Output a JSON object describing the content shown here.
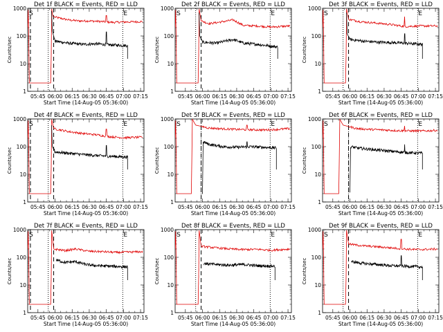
{
  "chart_data": {
    "type": "line",
    "x_tick_labels": [
      "05:45",
      "06:00",
      "06:15",
      "06:30",
      "06:45",
      "07:00",
      "07:15"
    ],
    "x_ticks_hours": [
      5.75,
      6.0,
      6.25,
      6.5,
      6.75,
      7.0,
      7.25
    ],
    "xlim_hours": [
      5.6,
      7.3
    ],
    "ylim": [
      1,
      1000
    ],
    "y_scale": "log",
    "y_tick_labels": [
      "1",
      "10",
      "100",
      "1000"
    ],
    "y_ticks": [
      1,
      10,
      100,
      1000
    ],
    "ylabel": "Counts/sec",
    "xlabel": "Start Time (14-Aug-05 05:36:00)",
    "grid": false,
    "colors": {
      "events": "#000000",
      "lld": "#e00000"
    },
    "markers": [
      {
        "label": "S",
        "hour": 5.612
      },
      {
        "label": "E",
        "hour": 6.99
      }
    ],
    "panels": [
      {
        "title": "Det 1f BLACK = Events, RED = LLD",
        "dashed_hours": [
          5.64,
          5.98
        ],
        "dotted_hours": [
          5.9,
          6.99
        ],
        "lld_profile": [
          [
            5.6,
            200
          ],
          [
            5.605,
            800
          ],
          [
            5.612,
            1000
          ],
          [
            5.62,
            2
          ],
          [
            5.94,
            2
          ],
          [
            5.95,
            1000
          ],
          [
            5.97,
            500
          ],
          [
            6.05,
            450
          ],
          [
            6.2,
            380
          ],
          [
            6.35,
            350
          ],
          [
            6.5,
            350
          ],
          [
            6.7,
            330
          ],
          [
            6.85,
            310
          ],
          [
            7.0,
            320
          ],
          [
            7.28,
            330
          ]
        ],
        "event_profile": [
          [
            5.95,
            800
          ],
          [
            5.96,
            150
          ],
          [
            6.0,
            65
          ],
          [
            6.2,
            55
          ],
          [
            6.4,
            50
          ],
          [
            6.6,
            52
          ],
          [
            6.8,
            48
          ],
          [
            7.06,
            45
          ]
        ],
        "end_drop_hour": 7.06,
        "spike": {
          "hour": 6.75,
          "lld": 550,
          "events": 140
        }
      },
      {
        "title": "Det 2f BLACK = Events, RED = LLD",
        "dashed_hours": [
          5.98
        ],
        "dotted_hours": [
          5.9,
          6.99
        ],
        "lld_profile": [
          [
            5.6,
            200
          ],
          [
            5.605,
            800
          ],
          [
            5.612,
            1000
          ],
          [
            5.62,
            2
          ],
          [
            5.94,
            2
          ],
          [
            5.95,
            1000
          ],
          [
            5.98,
            350
          ],
          [
            6.1,
            280
          ],
          [
            6.3,
            330
          ],
          [
            6.45,
            380
          ],
          [
            6.6,
            240
          ],
          [
            6.8,
            230
          ],
          [
            7.0,
            210
          ],
          [
            7.28,
            230
          ]
        ],
        "event_profile": [
          [
            5.95,
            700
          ],
          [
            5.96,
            100
          ],
          [
            6.0,
            60
          ],
          [
            6.2,
            55
          ],
          [
            6.45,
            75
          ],
          [
            6.6,
            55
          ],
          [
            6.8,
            50
          ],
          [
            7.1,
            40
          ]
        ],
        "end_drop_hour": 7.1,
        "spike": null
      },
      {
        "title": "Det 3f BLACK = Events, RED = LLD",
        "dashed_hours": [
          5.98
        ],
        "dotted_hours": [
          5.9,
          6.99
        ],
        "lld_profile": [
          [
            5.6,
            200
          ],
          [
            5.605,
            800
          ],
          [
            5.612,
            1000
          ],
          [
            5.62,
            2
          ],
          [
            5.94,
            2
          ],
          [
            5.95,
            1000
          ],
          [
            5.98,
            400
          ],
          [
            6.15,
            330
          ],
          [
            6.4,
            290
          ],
          [
            6.6,
            260
          ],
          [
            6.8,
            220
          ],
          [
            7.0,
            230
          ],
          [
            7.28,
            230
          ]
        ],
        "event_profile": [
          [
            5.95,
            700
          ],
          [
            5.96,
            120
          ],
          [
            6.0,
            75
          ],
          [
            6.2,
            65
          ],
          [
            6.4,
            60
          ],
          [
            6.6,
            58
          ],
          [
            6.8,
            55
          ],
          [
            7.06,
            50
          ]
        ],
        "end_drop_hour": 7.06,
        "spike": {
          "hour": 6.8,
          "lld": 500,
          "events": 120
        }
      },
      {
        "title": "Det 4f BLACK = Events, RED = LLD",
        "dashed_hours": [
          5.64,
          5.98
        ],
        "dotted_hours": [
          5.9,
          6.99
        ],
        "lld_profile": [
          [
            5.6,
            200
          ],
          [
            5.605,
            800
          ],
          [
            5.612,
            1000
          ],
          [
            5.62,
            2
          ],
          [
            5.94,
            2
          ],
          [
            5.95,
            1000
          ],
          [
            5.98,
            450
          ],
          [
            6.2,
            350
          ],
          [
            6.4,
            300
          ],
          [
            6.6,
            270
          ],
          [
            6.8,
            230
          ],
          [
            7.0,
            210
          ],
          [
            7.28,
            220
          ]
        ],
        "event_profile": [
          [
            5.95,
            600
          ],
          [
            5.96,
            100
          ],
          [
            6.0,
            65
          ],
          [
            6.2,
            58
          ],
          [
            6.4,
            52
          ],
          [
            6.6,
            48
          ],
          [
            6.8,
            45
          ],
          [
            7.06,
            42
          ]
        ],
        "end_drop_hour": 7.06,
        "spike": {
          "hour": 6.75,
          "lld": 430,
          "events": 110
        }
      },
      {
        "title": "Det 5f BLACK = Events, RED = LLD",
        "dashed_hours": [
          5.98
        ],
        "dotted_hours": [
          5.98,
          6.99
        ],
        "lld_profile": [
          [
            5.6,
            200
          ],
          [
            5.605,
            800
          ],
          [
            5.612,
            1000
          ],
          [
            5.62,
            2
          ],
          [
            5.84,
            2
          ],
          [
            5.85,
            1000
          ],
          [
            5.9,
            600
          ],
          [
            6.1,
            470
          ],
          [
            6.3,
            440
          ],
          [
            6.5,
            420
          ],
          [
            6.7,
            410
          ],
          [
            6.9,
            400
          ],
          [
            7.1,
            420
          ],
          [
            7.28,
            450
          ]
        ],
        "event_profile": [
          [
            6.0,
            2
          ],
          [
            6.01,
            150
          ],
          [
            6.1,
            120
          ],
          [
            6.3,
            100
          ],
          [
            6.5,
            95
          ],
          [
            6.7,
            100
          ],
          [
            6.9,
            95
          ],
          [
            7.08,
            90
          ]
        ],
        "end_drop_hour": 7.08,
        "spike": {
          "hour": 6.65,
          "lld": 600,
          "events": 150
        }
      },
      {
        "title": "Det 6f BLACK = Events, RED = LLD",
        "dashed_hours": [
          5.98
        ],
        "dotted_hours": [
          5.98,
          6.99
        ],
        "lld_profile": [
          [
            5.6,
            200
          ],
          [
            5.605,
            800
          ],
          [
            5.612,
            1000
          ],
          [
            5.62,
            2
          ],
          [
            5.84,
            2
          ],
          [
            5.85,
            1000
          ],
          [
            5.9,
            600
          ],
          [
            6.1,
            450
          ],
          [
            6.3,
            420
          ],
          [
            6.5,
            400
          ],
          [
            6.7,
            380
          ],
          [
            6.9,
            370
          ],
          [
            7.1,
            370
          ],
          [
            7.28,
            390
          ]
        ],
        "event_profile": [
          [
            6.0,
            2
          ],
          [
            6.01,
            100
          ],
          [
            6.1,
            90
          ],
          [
            6.3,
            80
          ],
          [
            6.5,
            72
          ],
          [
            6.7,
            65
          ],
          [
            6.9,
            60
          ],
          [
            7.06,
            58
          ]
        ],
        "end_drop_hour": 7.06,
        "spike": {
          "hour": 6.8,
          "lld": 560,
          "events": 120
        }
      },
      {
        "title": "Det 7f BLACK = Events, RED = LLD",
        "dashed_hours": [
          5.64,
          5.98
        ],
        "dotted_hours": [
          5.9,
          6.99
        ],
        "lld_profile": [
          [
            5.6,
            200
          ],
          [
            5.605,
            800
          ],
          [
            5.612,
            1000
          ],
          [
            5.62,
            2
          ],
          [
            5.94,
            2
          ],
          [
            5.95,
            1000
          ],
          [
            5.98,
            200
          ],
          [
            6.15,
            175
          ],
          [
            6.3,
            200
          ],
          [
            6.5,
            165
          ],
          [
            6.7,
            160
          ],
          [
            6.9,
            150
          ],
          [
            7.1,
            155
          ],
          [
            7.28,
            160
          ]
        ],
        "event_profile": [
          [
            6.02,
            80
          ],
          [
            6.15,
            65
          ],
          [
            6.3,
            70
          ],
          [
            6.45,
            55
          ],
          [
            6.6,
            50
          ],
          [
            6.8,
            48
          ],
          [
            7.06,
            45
          ]
        ],
        "end_drop_hour": 7.06,
        "spike": null
      },
      {
        "title": "Det 8f BLACK = Events, RED = LLD",
        "dashed_hours": [
          5.98
        ],
        "dotted_hours": [
          5.9,
          6.99
        ],
        "lld_profile": [
          [
            5.6,
            200
          ],
          [
            5.605,
            800
          ],
          [
            5.612,
            1000
          ],
          [
            5.62,
            2
          ],
          [
            5.94,
            2
          ],
          [
            5.95,
            1000
          ],
          [
            5.98,
            250
          ],
          [
            6.2,
            220
          ],
          [
            6.4,
            200
          ],
          [
            6.6,
            190
          ],
          [
            6.8,
            195
          ],
          [
            7.0,
            180
          ],
          [
            7.28,
            200
          ]
        ],
        "event_profile": [
          [
            6.02,
            60
          ],
          [
            6.2,
            55
          ],
          [
            6.4,
            52
          ],
          [
            6.6,
            55
          ],
          [
            6.8,
            50
          ],
          [
            7.06,
            48
          ]
        ],
        "end_drop_hour": 7.06,
        "spike": null
      },
      {
        "title": "Det 9f BLACK = Events, RED = LLD",
        "dashed_hours": [
          5.98
        ],
        "dotted_hours": [
          5.9,
          6.99
        ],
        "lld_profile": [
          [
            5.6,
            200
          ],
          [
            5.605,
            800
          ],
          [
            5.612,
            1000
          ],
          [
            5.62,
            2
          ],
          [
            5.94,
            2
          ],
          [
            5.95,
            1000
          ],
          [
            5.98,
            300
          ],
          [
            6.2,
            260
          ],
          [
            6.4,
            240
          ],
          [
            6.6,
            220
          ],
          [
            6.8,
            200
          ],
          [
            7.0,
            190
          ],
          [
            7.28,
            200
          ]
        ],
        "event_profile": [
          [
            6.02,
            70
          ],
          [
            6.2,
            60
          ],
          [
            6.4,
            55
          ],
          [
            6.6,
            50
          ],
          [
            6.8,
            48
          ],
          [
            7.06,
            45
          ]
        ],
        "end_drop_hour": 7.06,
        "spike": {
          "hour": 6.75,
          "lld": 450,
          "events": 115
        }
      }
    ]
  }
}
